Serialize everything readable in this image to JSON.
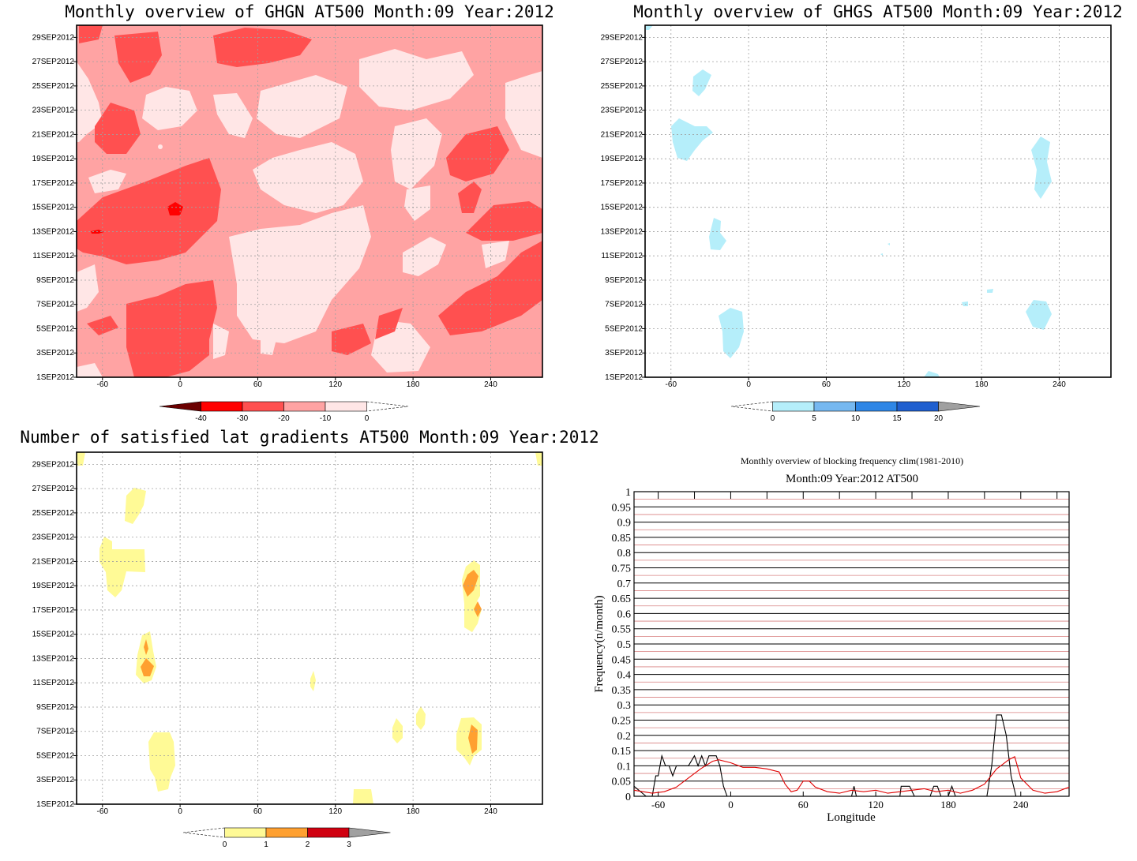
{
  "chart_data": [
    {
      "type": "heatmap",
      "title": "Monthly overview of GHGN AT500 Month:09 Year:2012",
      "x_ticks": [
        "-60",
        "0",
        "60",
        "120",
        "180",
        "240"
      ],
      "x_tick_values": [
        -60,
        0,
        60,
        120,
        180,
        240
      ],
      "xlim": [
        -80,
        280
      ],
      "y_ticks": [
        "1SEP2012",
        "3SEP2012",
        "5SEP2012",
        "7SEP2012",
        "9SEP2012",
        "11SEP2012",
        "13SEP2012",
        "15SEP2012",
        "17SEP2012",
        "19SEP2012",
        "21SEP2012",
        "23SEP2012",
        "25SEP2012",
        "27SEP2012",
        "29SEP2012"
      ],
      "y_tick_values": [
        1,
        3,
        5,
        7,
        9,
        11,
        13,
        15,
        17,
        19,
        21,
        23,
        25,
        27,
        29
      ],
      "ylim": [
        1,
        30
      ],
      "colorbar": {
        "labels": [
          "-40",
          "-30",
          "-20",
          "-10",
          "0"
        ],
        "colors": [
          "#6b0000",
          "#ff0000",
          "#ff5050",
          "#ffa3a3",
          "#ffe6e6"
        ],
        "overflow": "high-dashed"
      },
      "grid": true
    },
    {
      "type": "heatmap",
      "title": "Monthly overview of GHGS AT500 Month:09 Year:2012",
      "x_ticks": [
        "-60",
        "0",
        "60",
        "120",
        "180",
        "240"
      ],
      "x_tick_values": [
        -60,
        0,
        60,
        120,
        180,
        240
      ],
      "xlim": [
        -80,
        280
      ],
      "y_ticks": [
        "1SEP2012",
        "3SEP2012",
        "5SEP2012",
        "7SEP2012",
        "9SEP2012",
        "11SEP2012",
        "13SEP2012",
        "15SEP2012",
        "17SEP2012",
        "19SEP2012",
        "21SEP2012",
        "23SEP2012",
        "25SEP2012",
        "27SEP2012",
        "29SEP2012"
      ],
      "y_tick_values": [
        1,
        3,
        5,
        7,
        9,
        11,
        13,
        15,
        17,
        19,
        21,
        23,
        25,
        27,
        29
      ],
      "ylim": [
        1,
        30
      ],
      "colorbar": {
        "labels": [
          "0",
          "5",
          "10",
          "15",
          "20"
        ],
        "colors": [
          "#b5eefa",
          "#76b8f0",
          "#2e86e6",
          "#1f5fcf",
          "#a0a0a0"
        ],
        "overflow": "low-dashed"
      },
      "grid": true
    },
    {
      "type": "heatmap",
      "title": "Number of satisfied lat gradients AT500 Month:09 Year:2012",
      "x_ticks": [
        "-60",
        "0",
        "60",
        "120",
        "180",
        "240"
      ],
      "x_tick_values": [
        -60,
        0,
        60,
        120,
        180,
        240
      ],
      "xlim": [
        -80,
        280
      ],
      "y_ticks": [
        "1SEP2012",
        "3SEP2012",
        "5SEP2012",
        "7SEP2012",
        "9SEP2012",
        "11SEP2012",
        "13SEP2012",
        "15SEP2012",
        "17SEP2012",
        "19SEP2012",
        "21SEP2012",
        "23SEP2012",
        "25SEP2012",
        "27SEP2012",
        "29SEP2012"
      ],
      "y_tick_values": [
        1,
        3,
        5,
        7,
        9,
        11,
        13,
        15,
        17,
        19,
        21,
        23,
        25,
        27,
        29
      ],
      "ylim": [
        1,
        30
      ],
      "colorbar": {
        "labels": [
          "0",
          "1",
          "2",
          "3"
        ],
        "colors": [
          "#fffa96",
          "#ffa030",
          "#d00010",
          "#a0a0a0"
        ],
        "overflow": "low-dashed"
      },
      "grid": true
    },
    {
      "type": "line",
      "title": "Monthly overview of blocking frequency clim(1981-2010)",
      "subtitle": "Month:09 Year:2012  AT500",
      "xlabel": "Longitude",
      "ylabel": "Frequency(n/month)",
      "xlim": [
        -80,
        280
      ],
      "ylim": [
        0,
        1
      ],
      "x_ticks": [
        "-60",
        "0",
        "60",
        "120",
        "180",
        "240"
      ],
      "x_tick_values": [
        -60,
        0,
        60,
        120,
        180,
        240
      ],
      "y_ticks": [
        "0",
        "0.05",
        "0.1",
        "0.15",
        "0.2",
        "0.25",
        "0.3",
        "0.35",
        "0.4",
        "0.45",
        "0.5",
        "0.55",
        "0.6",
        "0.65",
        "0.7",
        "0.75",
        "0.8",
        "0.85",
        "0.9",
        "0.95",
        "1"
      ],
      "y_tick_values": [
        0,
        0.05,
        0.1,
        0.15,
        0.2,
        0.25,
        0.3,
        0.35,
        0.4,
        0.45,
        0.5,
        0.55,
        0.6,
        0.65,
        0.7,
        0.75,
        0.8,
        0.85,
        0.9,
        0.95,
        1
      ],
      "grid": true,
      "series": [
        {
          "color": "#000000",
          "x": [
            -80,
            -70,
            -65,
            -62,
            -60,
            -57,
            -54,
            -51,
            -48,
            -45,
            -42,
            -38,
            -35,
            -30,
            -27,
            -24,
            -21,
            -18,
            -15,
            -12,
            -9,
            -6,
            -3,
            0,
            60,
            100,
            102,
            104,
            120,
            140,
            141,
            148,
            152,
            165,
            168,
            171,
            174,
            180,
            183,
            186,
            212,
            216,
            220,
            224,
            228,
            232,
            236,
            280
          ],
          "y": [
            0.033,
            0.0,
            0.0,
            0.067,
            0.067,
            0.133,
            0.1,
            0.1,
            0.067,
            0.1,
            0.1,
            0.1,
            0.1,
            0.133,
            0.1,
            0.133,
            0.1,
            0.133,
            0.133,
            0.133,
            0.1,
            0.033,
            0.0,
            0.0,
            0.0,
            0.0,
            0.033,
            0.0,
            0.0,
            0.0,
            0.033,
            0.033,
            0.0,
            0.0,
            0.033,
            0.033,
            0.0,
            0.0,
            0.033,
            0.0,
            0.0,
            0.1,
            0.267,
            0.267,
            0.2,
            0.067,
            0.0,
            0.0
          ]
        },
        {
          "color": "#e00000",
          "x": [
            -80,
            -65,
            -55,
            -45,
            -35,
            -25,
            -15,
            -10,
            0,
            10,
            20,
            30,
            40,
            45,
            50,
            55,
            60,
            65,
            70,
            80,
            90,
            100,
            110,
            120,
            130,
            140,
            150,
            160,
            170,
            180,
            190,
            200,
            210,
            220,
            230,
            235,
            240,
            250,
            260,
            270,
            280
          ],
          "y": [
            0.02,
            0.01,
            0.015,
            0.03,
            0.06,
            0.09,
            0.115,
            0.12,
            0.11,
            0.095,
            0.095,
            0.09,
            0.08,
            0.04,
            0.015,
            0.02,
            0.05,
            0.05,
            0.03,
            0.015,
            0.01,
            0.02,
            0.015,
            0.02,
            0.01,
            0.015,
            0.02,
            0.025,
            0.015,
            0.02,
            0.01,
            0.02,
            0.04,
            0.09,
            0.12,
            0.13,
            0.06,
            0.02,
            0.01,
            0.015,
            0.03
          ]
        }
      ]
    }
  ]
}
